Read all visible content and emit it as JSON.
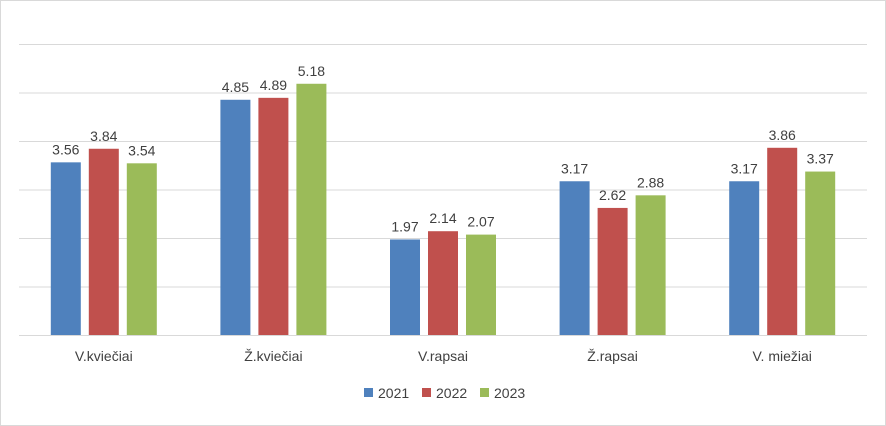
{
  "chart_data": {
    "type": "bar",
    "categories": [
      "V.kviečiai",
      "Ž.kviečiai",
      "V.rapsai",
      "Ž.rapsai",
      "V. miežiai"
    ],
    "series": [
      {
        "name": "2021",
        "color": "#4f81bd",
        "values": [
          3.56,
          4.85,
          1.97,
          3.17,
          3.17
        ]
      },
      {
        "name": "2022",
        "color": "#c0504d",
        "values": [
          3.84,
          4.89,
          2.14,
          2.62,
          3.86
        ]
      },
      {
        "name": "2023",
        "color": "#9bbb59",
        "values": [
          3.54,
          5.18,
          2.07,
          2.88,
          3.37
        ]
      }
    ],
    "value_labels": [
      [
        "3.56",
        "4.85",
        "1.97",
        "3.17",
        "3.17"
      ],
      [
        "3.84",
        "4.89",
        "2.14",
        "2.62",
        "3.86"
      ],
      [
        "3.54",
        "5.18",
        "2.07",
        "2.88",
        "3.37"
      ]
    ],
    "ylim": [
      0,
      6
    ],
    "gridlines": true,
    "y_tick_labels_shown": false,
    "legend_position": "bottom"
  }
}
